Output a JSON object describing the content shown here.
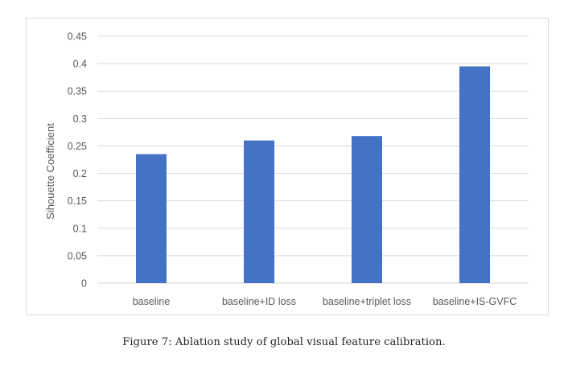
{
  "caption": "Figure 7: Ablation study of global visual feature calibration.",
  "colors": {
    "bar": "#4472C4",
    "grid": "#d9d9d9",
    "axis_text": "#595959",
    "frame": "#d9d9d9"
  },
  "chart_data": {
    "type": "bar",
    "title": "",
    "xlabel": "",
    "ylabel": "Sihouette Coefficient",
    "categories": [
      "baseline",
      "baseline+ID loss",
      "baseline+triplet loss",
      "baseline+IS-GVFC"
    ],
    "values": [
      0.235,
      0.26,
      0.268,
      0.395
    ],
    "ylim": [
      0,
      0.45
    ],
    "yticks": [
      "0",
      "0.05",
      "0.1",
      "0.15",
      "0.2",
      "0.25",
      "0.3",
      "0.35",
      "0.4",
      "0.45"
    ],
    "grid": true,
    "legend": "none"
  }
}
